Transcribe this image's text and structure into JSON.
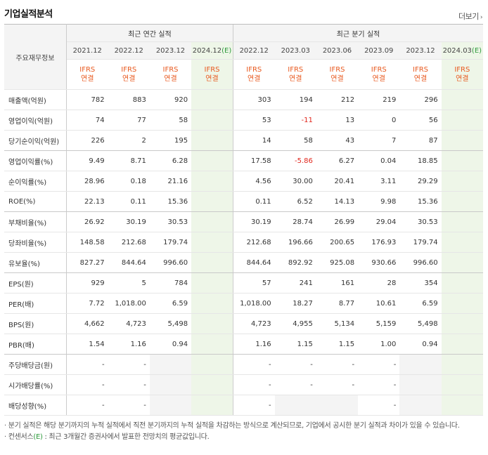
{
  "title": "기업실적분석",
  "more_label": "더보기",
  "more_arrow": "›",
  "header": {
    "row_label": "주요재무정보",
    "annual_group": "최근 연간 실적",
    "quarter_group": "최근 분기 실적",
    "annual_years": [
      "2021.12",
      "2022.12",
      "2023.12",
      "2024.12"
    ],
    "quarter_periods": [
      "2022.12",
      "2023.03",
      "2023.06",
      "2023.09",
      "2023.12",
      "2024.03"
    ],
    "estimate_mark": "(E)",
    "ifrs_line1": "IFRS",
    "ifrs_line2": "연결"
  },
  "rows": [
    {
      "label": "매출액(억원)",
      "annual": [
        "782",
        "883",
        "920",
        ""
      ],
      "quarter": [
        "303",
        "194",
        "212",
        "219",
        "296",
        ""
      ]
    },
    {
      "label": "영업이익(억원)",
      "annual": [
        "74",
        "77",
        "58",
        ""
      ],
      "quarter": [
        "53",
        "-11",
        "13",
        "0",
        "56",
        ""
      ]
    },
    {
      "label": "당기순이익(억원)",
      "annual": [
        "226",
        "2",
        "195",
        ""
      ],
      "quarter": [
        "14",
        "58",
        "43",
        "7",
        "87",
        ""
      ]
    },
    {
      "label": "영업이익률(%)",
      "annual": [
        "9.49",
        "8.71",
        "6.28",
        ""
      ],
      "quarter": [
        "17.58",
        "-5.86",
        "6.27",
        "0.04",
        "18.85",
        ""
      ]
    },
    {
      "label": "순이익률(%)",
      "annual": [
        "28.96",
        "0.18",
        "21.16",
        ""
      ],
      "quarter": [
        "4.56",
        "30.00",
        "20.41",
        "3.11",
        "29.29",
        ""
      ]
    },
    {
      "label": "ROE(%)",
      "annual": [
        "22.13",
        "0.11",
        "15.36",
        ""
      ],
      "quarter": [
        "0.11",
        "6.52",
        "14.13",
        "9.98",
        "15.36",
        ""
      ]
    },
    {
      "label": "부채비율(%)",
      "annual": [
        "26.92",
        "30.19",
        "30.53",
        ""
      ],
      "quarter": [
        "30.19",
        "28.74",
        "26.99",
        "29.04",
        "30.53",
        ""
      ]
    },
    {
      "label": "당좌비율(%)",
      "annual": [
        "148.58",
        "212.68",
        "179.74",
        ""
      ],
      "quarter": [
        "212.68",
        "196.66",
        "200.65",
        "176.93",
        "179.74",
        ""
      ]
    },
    {
      "label": "유보율(%)",
      "annual": [
        "827.27",
        "844.64",
        "996.60",
        ""
      ],
      "quarter": [
        "844.64",
        "892.92",
        "925.08",
        "930.66",
        "996.60",
        ""
      ]
    },
    {
      "label": "EPS(원)",
      "annual": [
        "929",
        "5",
        "784",
        ""
      ],
      "quarter": [
        "57",
        "241",
        "161",
        "28",
        "354",
        ""
      ]
    },
    {
      "label": "PER(배)",
      "annual": [
        "7.72",
        "1,018.00",
        "6.59",
        ""
      ],
      "quarter": [
        "1,018.00",
        "18.27",
        "8.77",
        "10.61",
        "6.59",
        ""
      ]
    },
    {
      "label": "BPS(원)",
      "annual": [
        "4,662",
        "4,723",
        "5,498",
        ""
      ],
      "quarter": [
        "4,723",
        "4,955",
        "5,134",
        "5,159",
        "5,498",
        ""
      ]
    },
    {
      "label": "PBR(배)",
      "annual": [
        "1.54",
        "1.16",
        "0.94",
        ""
      ],
      "quarter": [
        "1.16",
        "1.15",
        "1.15",
        "1.00",
        "0.94",
        ""
      ]
    },
    {
      "label": "주당배당금(원)",
      "annual": [
        "-",
        "-",
        null,
        ""
      ],
      "quarter": [
        "-",
        "-",
        "-",
        "-",
        null,
        ""
      ]
    },
    {
      "label": "시가배당률(%)",
      "annual": [
        "-",
        "-",
        null,
        ""
      ],
      "quarter": [
        "-",
        "-",
        "-",
        "-",
        null,
        ""
      ]
    },
    {
      "label": "배당성향(%)",
      "annual": [
        "-",
        "-",
        null,
        ""
      ],
      "quarter": [
        "-",
        null,
        null,
        "-",
        null,
        ""
      ]
    }
  ],
  "notes": [
    "· 분기 실적은 해당 분기까지의 누적 실적에서 직전 분기까지의 누적 실적을 차감하는 방식으로 계산되므로, 기업에서 공시한 분기 실적과 차이가 있을 수 있습니다.",
    "· 컨센서스(E) : 최근 3개월간 증권사에서 발표한 전망치의 평균값입니다."
  ],
  "colors": {
    "ifrs": "#e8591f",
    "estimate": "#2e9a3c",
    "negative": "#e1261c",
    "estimate_bg": "#eef6e8"
  }
}
